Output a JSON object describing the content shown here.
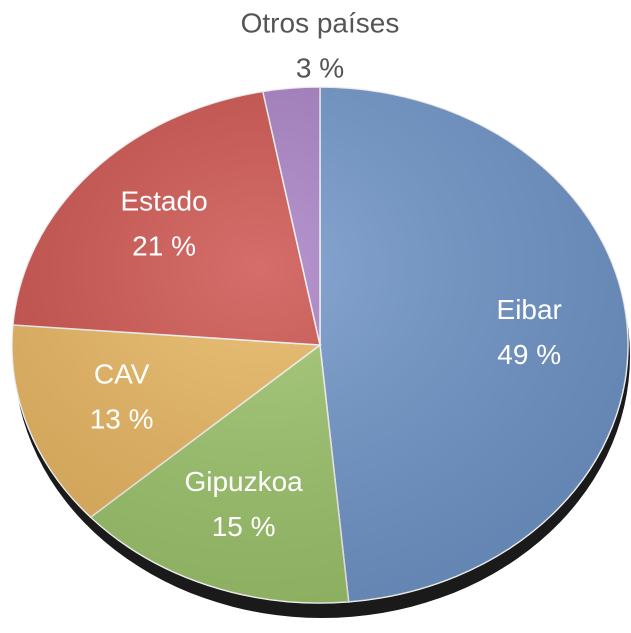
{
  "chart_data": {
    "type": "pie",
    "categories": [
      "Eibar",
      "Gipuzkoa",
      "CAV",
      "Estado",
      "Otros países"
    ],
    "values": [
      49,
      15,
      13,
      21,
      3
    ],
    "value_labels": [
      "49 %",
      "15 %",
      "13 %",
      "21 %",
      "3 %"
    ],
    "colors": [
      "#6f95c9",
      "#9cc46a",
      "#e8b55e",
      "#cc4f4a",
      "#a77fc4"
    ]
  }
}
